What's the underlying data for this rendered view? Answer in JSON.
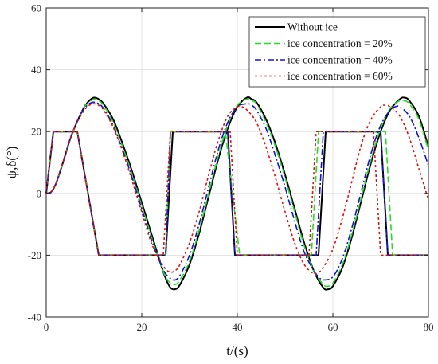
{
  "chart_data": {
    "type": "line",
    "title": "",
    "xlabel": "t/(s)",
    "ylabel": "ψ,δ(°)",
    "xlim": [
      0,
      80
    ],
    "ylim": [
      -40,
      60
    ],
    "xticks": [
      0,
      20,
      40,
      60,
      80
    ],
    "yticks": [
      -40,
      -20,
      0,
      20,
      40,
      60
    ],
    "grid": true,
    "legend_position": "top-right",
    "series": [
      {
        "name": "Without ice",
        "color": "#000000",
        "style": "solid",
        "heading": [
          [
            0,
            0
          ],
          [
            1,
            0.4
          ],
          [
            2,
            3
          ],
          [
            3,
            7.5
          ],
          [
            4,
            12.5
          ],
          [
            5,
            17.5
          ],
          [
            6,
            21.5
          ],
          [
            7,
            25
          ],
          [
            8,
            28
          ],
          [
            9,
            30
          ],
          [
            10,
            31
          ],
          [
            11,
            30.5
          ],
          [
            12,
            29
          ],
          [
            14,
            24
          ],
          [
            16,
            16
          ],
          [
            18,
            7
          ],
          [
            20,
            -3
          ],
          [
            22,
            -13
          ],
          [
            24,
            -23
          ],
          [
            25,
            -27.5
          ],
          [
            26,
            -30.5
          ],
          [
            27,
            -31
          ],
          [
            28,
            -29.5
          ],
          [
            30,
            -23
          ],
          [
            32,
            -13
          ],
          [
            34,
            -1
          ],
          [
            36,
            11
          ],
          [
            38,
            21
          ],
          [
            40,
            28
          ],
          [
            42,
            31
          ],
          [
            43,
            30.5
          ],
          [
            44,
            29.5
          ],
          [
            46,
            24
          ],
          [
            48,
            16
          ],
          [
            50,
            6
          ],
          [
            52,
            -5
          ],
          [
            54,
            -16
          ],
          [
            56,
            -25
          ],
          [
            58,
            -30.5
          ],
          [
            59,
            -31
          ],
          [
            60,
            -30
          ],
          [
            62,
            -24
          ],
          [
            64,
            -14
          ],
          [
            66,
            -2
          ],
          [
            68,
            10
          ],
          [
            70,
            20
          ],
          [
            72,
            27
          ],
          [
            74,
            30.5
          ],
          [
            75,
            31
          ],
          [
            76,
            30
          ],
          [
            78,
            25
          ],
          [
            80,
            15
          ]
        ],
        "rudder": [
          [
            0,
            0
          ],
          [
            1.5,
            20
          ],
          [
            6.5,
            20
          ],
          [
            11,
            -20
          ],
          [
            25,
            -20
          ],
          [
            26.5,
            20
          ],
          [
            38,
            20
          ],
          [
            39.5,
            -20
          ],
          [
            57,
            -20
          ],
          [
            58.5,
            20
          ],
          [
            70,
            20
          ],
          [
            71.5,
            -20
          ],
          [
            80,
            -20
          ]
        ]
      },
      {
        "name": "ice concentration = 20%",
        "color": "#22dd22",
        "style": "dash",
        "heading": [
          [
            0,
            0
          ],
          [
            1,
            0.4
          ],
          [
            2,
            3
          ],
          [
            3,
            7.5
          ],
          [
            4,
            12.5
          ],
          [
            5,
            17.5
          ],
          [
            6,
            21.5
          ],
          [
            7,
            25
          ],
          [
            8,
            28
          ],
          [
            9,
            29.5
          ],
          [
            10,
            30.5
          ],
          [
            11,
            30
          ],
          [
            12,
            28.5
          ],
          [
            14,
            23
          ],
          [
            16,
            15
          ],
          [
            18,
            6
          ],
          [
            20,
            -4
          ],
          [
            22,
            -14
          ],
          [
            24,
            -23
          ],
          [
            25,
            -27
          ],
          [
            26,
            -29
          ],
          [
            27,
            -29.5
          ],
          [
            28,
            -28
          ],
          [
            30,
            -22
          ],
          [
            32,
            -12
          ],
          [
            34,
            0
          ],
          [
            36,
            12
          ],
          [
            38,
            22
          ],
          [
            40,
            28.5
          ],
          [
            42,
            30.5
          ],
          [
            43,
            30
          ],
          [
            44,
            29
          ],
          [
            46,
            23
          ],
          [
            48,
            15
          ],
          [
            50,
            5
          ],
          [
            52,
            -6
          ],
          [
            54,
            -17
          ],
          [
            56,
            -25
          ],
          [
            58,
            -29.5
          ],
          [
            59,
            -30
          ],
          [
            60,
            -29
          ],
          [
            62,
            -23
          ],
          [
            64,
            -13
          ],
          [
            66,
            -1
          ],
          [
            68,
            11
          ],
          [
            70,
            21
          ],
          [
            72,
            27.5
          ],
          [
            74,
            30
          ],
          [
            75,
            30
          ],
          [
            76,
            29
          ],
          [
            78,
            24
          ],
          [
            80,
            14
          ]
        ],
        "rudder": [
          [
            0,
            0
          ],
          [
            1.5,
            20
          ],
          [
            6.5,
            20
          ],
          [
            11,
            -20
          ],
          [
            25,
            -20
          ],
          [
            26,
            20
          ],
          [
            37.5,
            20
          ],
          [
            40.5,
            -20
          ],
          [
            55.5,
            -20
          ],
          [
            57,
            20
          ],
          [
            71,
            20
          ],
          [
            72.5,
            -20
          ],
          [
            80,
            -20
          ]
        ]
      },
      {
        "name": "ice concentration = 40%",
        "color": "#1515cc",
        "style": "dashdot",
        "heading": [
          [
            0,
            0
          ],
          [
            1,
            0.4
          ],
          [
            2,
            3
          ],
          [
            3,
            7.5
          ],
          [
            4,
            12.5
          ],
          [
            5,
            17.5
          ],
          [
            6,
            21.5
          ],
          [
            7,
            25
          ],
          [
            8,
            27.5
          ],
          [
            9,
            29
          ],
          [
            10,
            29.5
          ],
          [
            11,
            29
          ],
          [
            12,
            27.5
          ],
          [
            14,
            22
          ],
          [
            16,
            14
          ],
          [
            18,
            5
          ],
          [
            20,
            -5
          ],
          [
            22,
            -15
          ],
          [
            24,
            -23
          ],
          [
            25,
            -26
          ],
          [
            26,
            -27.5
          ],
          [
            27,
            -28
          ],
          [
            28,
            -26.5
          ],
          [
            30,
            -20
          ],
          [
            32,
            -10
          ],
          [
            34,
            2
          ],
          [
            36,
            14
          ],
          [
            38,
            23
          ],
          [
            40,
            28
          ],
          [
            42,
            29
          ],
          [
            43,
            28.5
          ],
          [
            44,
            27
          ],
          [
            46,
            21
          ],
          [
            48,
            12
          ],
          [
            50,
            2
          ],
          [
            52,
            -9
          ],
          [
            54,
            -19
          ],
          [
            56,
            -25
          ],
          [
            57,
            -27
          ],
          [
            58,
            -28
          ],
          [
            60,
            -27
          ],
          [
            62,
            -21
          ],
          [
            64,
            -11
          ],
          [
            66,
            1
          ],
          [
            68,
            13
          ],
          [
            70,
            22
          ],
          [
            72,
            27
          ],
          [
            73,
            28
          ],
          [
            74,
            28
          ],
          [
            76,
            25
          ],
          [
            78,
            18
          ],
          [
            80,
            9
          ]
        ],
        "rudder": [
          [
            0,
            0
          ],
          [
            1.5,
            20
          ],
          [
            6.5,
            20
          ],
          [
            11,
            -20
          ],
          [
            25,
            -20
          ],
          [
            26,
            20
          ],
          [
            38,
            20
          ],
          [
            39.5,
            -20
          ],
          [
            56.5,
            -20
          ],
          [
            58,
            20
          ],
          [
            70,
            20
          ],
          [
            71.5,
            -20
          ],
          [
            80,
            -20
          ]
        ]
      },
      {
        "name": "ice concentration = 60%",
        "color": "#dd1111",
        "style": "dot",
        "heading": [
          [
            0,
            0
          ],
          [
            1,
            0.4
          ],
          [
            2,
            3
          ],
          [
            3,
            7.5
          ],
          [
            4,
            12.5
          ],
          [
            5,
            17.5
          ],
          [
            6,
            21.5
          ],
          [
            7,
            24.5
          ],
          [
            8,
            27
          ],
          [
            9,
            28.5
          ],
          [
            10,
            29
          ],
          [
            11,
            28.5
          ],
          [
            12,
            27
          ],
          [
            14,
            21.5
          ],
          [
            16,
            13.5
          ],
          [
            18,
            4
          ],
          [
            20,
            -6
          ],
          [
            22,
            -16
          ],
          [
            24,
            -22
          ],
          [
            25,
            -24.5
          ],
          [
            26,
            -25.5
          ],
          [
            27,
            -25
          ],
          [
            28,
            -23
          ],
          [
            30,
            -16
          ],
          [
            32,
            -6
          ],
          [
            34,
            6
          ],
          [
            36,
            17
          ],
          [
            38,
            25
          ],
          [
            40,
            28
          ],
          [
            41,
            28
          ],
          [
            42,
            27
          ],
          [
            44,
            23
          ],
          [
            46,
            15
          ],
          [
            48,
            5
          ],
          [
            50,
            -6
          ],
          [
            52,
            -16
          ],
          [
            54,
            -23
          ],
          [
            56,
            -26
          ],
          [
            57,
            -25.5
          ],
          [
            58,
            -24
          ],
          [
            60,
            -18
          ],
          [
            62,
            -8
          ],
          [
            64,
            4
          ],
          [
            66,
            16
          ],
          [
            68,
            24
          ],
          [
            70,
            28
          ],
          [
            71,
            28.5
          ],
          [
            72,
            28
          ],
          [
            74,
            25
          ],
          [
            76,
            18
          ],
          [
            78,
            8
          ],
          [
            80,
            -2
          ]
        ],
        "rudder": [
          [
            0,
            0
          ],
          [
            1.5,
            20
          ],
          [
            6.5,
            20
          ],
          [
            11,
            -20
          ],
          [
            24.5,
            -20
          ],
          [
            26,
            20
          ],
          [
            38.5,
            20
          ],
          [
            40,
            -20
          ],
          [
            55,
            -20
          ],
          [
            56.5,
            20
          ],
          [
            68.5,
            20
          ],
          [
            70,
            -20
          ],
          [
            80,
            -20
          ]
        ]
      }
    ]
  }
}
